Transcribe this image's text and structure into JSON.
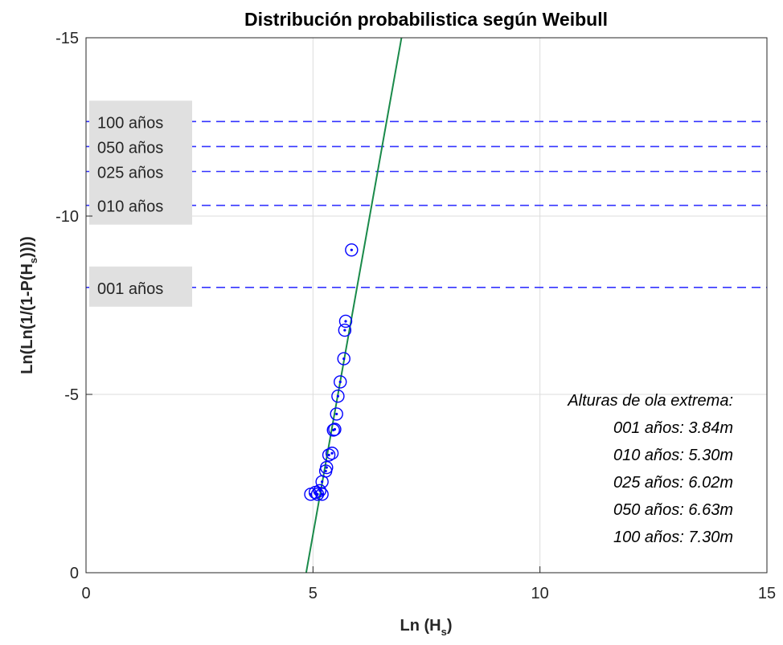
{
  "chart_data": {
    "type": "scatter",
    "title": "Distribución probabilistica según Weibull",
    "xlabel": "Ln (H",
    "xlabel_sub": "s",
    "xlabel_end": ")",
    "ylabel": "Ln(Ln(1/(1-P(H",
    "ylabel_sub": "s",
    "ylabel_end": "))))",
    "xlim": [
      0,
      15
    ],
    "ylim": [
      0,
      -15
    ],
    "y_reversed": true,
    "xticks": [
      0,
      5,
      10,
      15
    ],
    "yticks": [
      0,
      -5,
      -10,
      -15
    ],
    "grid": true,
    "colors": {
      "points": "#0000ff",
      "fit": "#1a8a4a",
      "return_lines": "#3333ff",
      "label_box": "#e0e0e0"
    },
    "points": [
      {
        "x": 4.95,
        "y": -2.2
      },
      {
        "x": 5.05,
        "y": -2.25
      },
      {
        "x": 5.1,
        "y": -2.2
      },
      {
        "x": 5.15,
        "y": -2.3
      },
      {
        "x": 5.2,
        "y": -2.2
      },
      {
        "x": 5.2,
        "y": -2.55
      },
      {
        "x": 5.28,
        "y": -2.85
      },
      {
        "x": 5.3,
        "y": -2.95
      },
      {
        "x": 5.35,
        "y": -3.3
      },
      {
        "x": 5.42,
        "y": -3.35
      },
      {
        "x": 5.45,
        "y": -4.0
      },
      {
        "x": 5.48,
        "y": -4.02
      },
      {
        "x": 5.52,
        "y": -4.45
      },
      {
        "x": 5.55,
        "y": -4.95
      },
      {
        "x": 5.6,
        "y": -5.35
      },
      {
        "x": 5.68,
        "y": -6.0
      },
      {
        "x": 5.7,
        "y": -6.8
      },
      {
        "x": 5.72,
        "y": -7.05
      },
      {
        "x": 5.85,
        "y": -9.05
      }
    ],
    "fit_line": {
      "x": [
        4.85,
        6.95
      ],
      "y": [
        0,
        -15
      ]
    },
    "return_periods": [
      {
        "label": "100 años",
        "y": -12.65
      },
      {
        "label": "050 años",
        "y": -11.95
      },
      {
        "label": "025 años",
        "y": -11.25
      },
      {
        "label": "010 años",
        "y": -10.3
      },
      {
        "label": "001 años",
        "y": -8.0
      }
    ],
    "annotation": {
      "title": "Alturas de ola extrema:",
      "lines": [
        "001 años: 3.84m",
        "010 años: 5.30m",
        "025 años: 6.02m",
        "050 años: 6.63m",
        "100 años: 7.30m"
      ]
    }
  }
}
